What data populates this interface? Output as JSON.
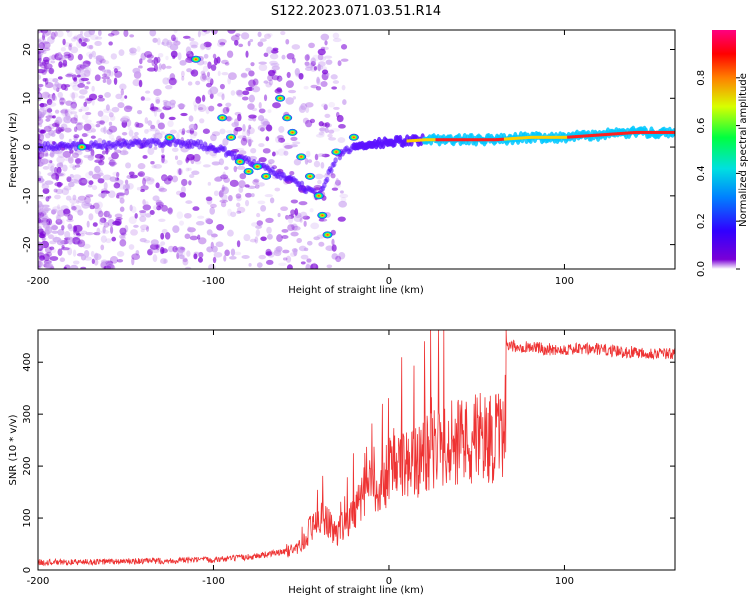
{
  "title": "S122.2023.071.03.51.R14",
  "chart_data": [
    {
      "type": "heatmap",
      "xlabel": "Height of straight line (km)",
      "ylabel": "Frequency (Hz)",
      "xlim": [
        -200,
        163
      ],
      "ylim": [
        -25,
        24
      ],
      "xticks": [
        -200,
        -100,
        0,
        100
      ],
      "yticks": [
        -20,
        -10,
        0,
        10,
        20
      ],
      "grid": false,
      "colormap": "rainbow (purple → blue → cyan → green → yellow → red → magenta)",
      "colorbar": {
        "label": "Normalized spectral amplitude",
        "range": [
          0,
          1
        ],
        "ticks": [
          "0.0",
          "0.2",
          "0.4",
          "0.6",
          "0.8"
        ]
      },
      "ridge": {
        "description": "dominant frequency track",
        "x": [
          -200,
          -120,
          -100,
          -80,
          -60,
          -40,
          -30,
          -20,
          -10,
          0,
          20,
          40,
          60,
          80,
          100,
          120,
          140,
          163
        ],
        "frequency": [
          0,
          1,
          0,
          -3,
          -6,
          -10,
          -2,
          0,
          0.5,
          1,
          1.5,
          1.5,
          1.5,
          2,
          2,
          2.5,
          3,
          3
        ]
      }
    },
    {
      "type": "line",
      "xlabel": "Height of straight line (km)",
      "ylabel": "SNR (10 * v/v)",
      "xlim": [
        -200,
        163
      ],
      "ylim": [
        0,
        462
      ],
      "xticks": [
        -200,
        -100,
        0,
        100
      ],
      "yticks": [
        0,
        100,
        200,
        300,
        400
      ],
      "grid": false,
      "color": "#ee3333",
      "series": [
        {
          "x": [
            -200,
            -180,
            -160,
            -140,
            -120,
            -100,
            -90,
            -80,
            -70,
            -60,
            -50,
            -45,
            -40,
            -35,
            -30,
            -25,
            -20,
            -15,
            -10,
            -5,
            0,
            10,
            20,
            30,
            40,
            50,
            60,
            66,
            67,
            70,
            80,
            90,
            100,
            110,
            120,
            130,
            140,
            150,
            163
          ],
          "y": [
            15,
            15,
            16,
            17,
            18,
            20,
            22,
            25,
            30,
            35,
            45,
            80,
            100,
            90,
            70,
            90,
            110,
            150,
            160,
            170,
            190,
            200,
            220,
            240,
            250,
            255,
            255,
            250,
            430,
            430,
            430,
            425,
            425,
            425,
            425,
            420,
            420,
            418,
            415
          ]
        }
      ]
    }
  ]
}
